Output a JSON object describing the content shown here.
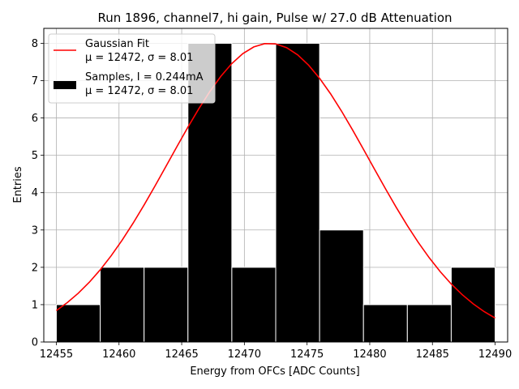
{
  "chart_data": {
    "type": "bar",
    "title": "Run 1896, channel7, hi gain, Pulse w/ 27.0 dB Attenuation",
    "xlabel": "Energy from OFCs [ADC Counts]",
    "ylabel": "Entries",
    "xlim": [
      12454,
      12491
    ],
    "ylim": [
      0,
      8.4
    ],
    "xticks": [
      12455,
      12460,
      12465,
      12470,
      12475,
      12480,
      12485,
      12490
    ],
    "yticks": [
      0,
      1,
      2,
      3,
      4,
      5,
      6,
      7,
      8
    ],
    "grid": true,
    "legend_position": "top-left",
    "histogram": {
      "bin_edges": [
        12455.0,
        12458.5,
        12462.0,
        12465.5,
        12469.0,
        12472.5,
        12476.0,
        12479.5,
        12483.0,
        12486.5,
        12490.0
      ],
      "counts": [
        1,
        2,
        2,
        8,
        2,
        8,
        3,
        1,
        1,
        2
      ],
      "color": "#000000",
      "edgecolor": "#ffffff"
    },
    "fit": {
      "mu": 12472,
      "sigma": 8.01,
      "amplitude": 8.0,
      "x_range": [
        12455,
        12490
      ],
      "color": "#ff0000"
    },
    "legend": [
      {
        "type": "line",
        "label_line1": "Gaussian Fit",
        "label_line2": "μ = 12472, σ = 8.01",
        "color": "#ff0000"
      },
      {
        "type": "bar",
        "label_line1": "Samples, I = 0.244mA",
        "label_line2": "μ = 12472, σ = 8.01",
        "color": "#000000"
      }
    ]
  }
}
